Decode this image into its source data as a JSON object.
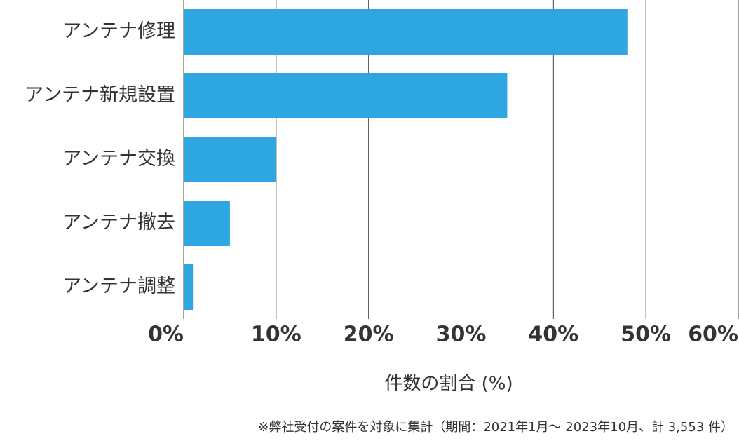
{
  "chart_data": {
    "type": "hbar",
    "categories": [
      "アンテナ修理",
      "アンテナ新規設置",
      "アンテナ交換",
      "アンテナ撤去",
      "アンテナ調整"
    ],
    "values": [
      48,
      35,
      10,
      5,
      1
    ],
    "color": "#2ea7e0",
    "xlim": [
      0,
      60
    ],
    "xticks": [
      {
        "value": 0,
        "label": "0%"
      },
      {
        "value": 10,
        "label": "10%"
      },
      {
        "value": 20,
        "label": "20%"
      },
      {
        "value": 30,
        "label": "30%"
      },
      {
        "value": 40,
        "label": "40%"
      },
      {
        "value": 50,
        "label": "50%"
      },
      {
        "value": 60,
        "label": "60%"
      }
    ],
    "xlabel": "件数の割合 (%)",
    "note": "※弊社受付の案件を対象に集計（期間：2021年1月～ 2023年10月、計 3,553 件）",
    "grid": true
  }
}
